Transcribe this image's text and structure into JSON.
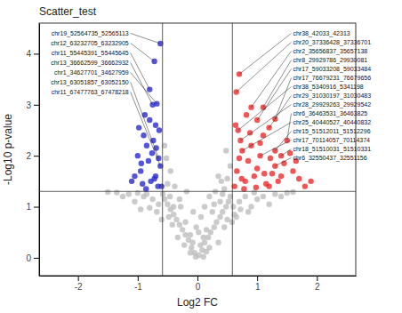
{
  "chart_data": {
    "type": "scatter",
    "title": "Scatter_test",
    "x_label": "Log2 FC",
    "y_label": "-Log10 p-value",
    "xlim": [
      -2.65,
      2.65
    ],
    "ylim": [
      -0.35,
      4.6
    ],
    "xticks": [
      -2,
      -1,
      0,
      1,
      2
    ],
    "yticks": [
      0,
      1,
      2,
      3,
      4
    ],
    "grid": false,
    "threshold_lines": {
      "x": [
        -0.585,
        0.585
      ],
      "y": [
        1.301
      ]
    },
    "series": [
      {
        "color": "#bebebe",
        "x": [
          0.02,
          -0.05,
          0.08,
          -0.1,
          0.12,
          -0.15,
          0.18,
          -0.2,
          0.22,
          -0.25,
          0.28,
          -0.3,
          0.32,
          -0.35,
          0.38,
          -0.4,
          0.42,
          -0.45,
          0.48,
          -0.5,
          0.52,
          -0.55,
          0.55,
          -0.58,
          0.45,
          -0.5,
          0.5,
          -0.45,
          0.55,
          -0.52,
          0.4,
          -0.38,
          0.35,
          0.48,
          -0.55,
          0.3,
          -0.3,
          0.25,
          -0.2,
          0.15,
          -0.08,
          0.05,
          -0.12,
          0.1,
          0.6,
          -0.65,
          0.7,
          -0.75,
          0.8,
          -0.85,
          0.9,
          -0.95,
          1.0,
          -1.05,
          1.1,
          -1.15,
          1.2,
          -1.25,
          1.3,
          -1.35,
          1.4,
          1.5,
          0.62,
          -0.68,
          0.72,
          -0.8,
          0.85,
          -0.9,
          0.95,
          -1.0,
          0.58,
          -0.6,
          0.65,
          1.6,
          -1.5,
          0.02,
          -0.02,
          0.06,
          -0.07,
          0.12,
          0.2,
          -0.18,
          0.1,
          -0.03,
          0.35,
          -0.33,
          0.45,
          -0.42,
          0.5,
          -0.48,
          0.2,
          -0.22,
          0.15,
          -0.12,
          0.38,
          -0.4,
          0.28,
          -0.28,
          0.42,
          -0.46
        ],
        "values": [
          0.05,
          0.1,
          0.15,
          0.2,
          0.3,
          0.35,
          0.4,
          0.45,
          0.5,
          0.55,
          0.6,
          0.65,
          0.7,
          0.75,
          0.8,
          0.85,
          0.9,
          0.95,
          1.0,
          1.05,
          1.1,
          1.15,
          1.2,
          1.25,
          1.35,
          1.45,
          1.55,
          1.7,
          1.8,
          1.95,
          1.5,
          1.4,
          1.6,
          2.1,
          2.2,
          1.3,
          1.15,
          0.9,
          0.7,
          0.55,
          0.3,
          0.25,
          0.45,
          0.4,
          1.0,
          1.05,
          1.1,
          1.15,
          1.2,
          1.25,
          1.0,
          0.95,
          1.15,
          1.1,
          1.2,
          1.25,
          1.05,
          1.2,
          1.25,
          1.28,
          1.2,
          1.27,
          0.85,
          0.9,
          0.95,
          0.98,
          0.9,
          1.2,
          1.28,
          1.27,
          0.7,
          0.75,
          0.8,
          1.29,
          1.29,
          0.5,
          0.6,
          0.8,
          0.9,
          1.0,
          1.2,
          1.3,
          0.02,
          0.02,
          0.3,
          0.4,
          0.6,
          0.65,
          0.75,
          0.8,
          0.2,
          0.25,
          0.12,
          0.1,
          1.1,
          1.0,
          1.05,
          1.0,
          1.25,
          1.2
        ]
      },
      {
        "color": "#2b2bd0",
        "x": [
          -0.62,
          -0.72,
          -0.8,
          -0.75,
          -0.68,
          -0.65,
          -0.62,
          -0.7,
          -0.9,
          -0.85,
          -1.0,
          -0.95,
          -0.78,
          -0.66,
          -0.88,
          -1.05,
          -0.74,
          -0.82,
          -0.92,
          -0.7,
          -0.64,
          -0.98,
          -0.86,
          -0.76,
          -1.1,
          -0.69,
          -0.8,
          -0.94,
          -0.6,
          -0.72
        ],
        "values": [
          4.2,
          3.85,
          3.3,
          3.0,
          3.02,
          1.95,
          1.8,
          2.6,
          2.4,
          2.2,
          2.0,
          1.7,
          1.5,
          1.4,
          2.8,
          1.6,
          2.3,
          1.9,
          1.45,
          1.6,
          2.5,
          2.55,
          1.35,
          2.05,
          1.5,
          2.15,
          2.7,
          1.85,
          1.4,
          1.55
        ]
      },
      {
        "color": "#ee2a2a",
        "x": [
          0.7,
          0.65,
          0.9,
          1.1,
          1.0,
          1.3,
          0.68,
          1.2,
          0.72,
          1.5,
          0.75,
          1.3,
          1.05,
          1.4,
          1.3,
          0.8,
          0.95,
          1.15,
          1.6,
          1.7,
          0.62,
          0.85,
          1.25,
          1.45,
          1.8,
          0.66,
          0.9,
          1.1,
          1.35,
          1.55,
          0.7,
          0.78,
          1.0,
          1.2,
          1.65,
          0.64,
          0.88,
          1.05,
          1.4,
          1.9,
          0.74,
          0.98,
          1.22,
          0.82,
          1.12
        ],
        "values": [
          3.6,
          3.25,
          2.95,
          2.95,
          2.7,
          2.72,
          2.5,
          2.55,
          2.3,
          2.3,
          2.1,
          2.1,
          2.0,
          2.0,
          1.8,
          1.5,
          1.6,
          1.45,
          1.7,
          1.55,
          1.4,
          1.9,
          1.65,
          1.85,
          1.4,
          1.7,
          2.2,
          2.4,
          1.5,
          2.05,
          1.95,
          1.35,
          1.75,
          1.4,
          1.9,
          2.6,
          2.45,
          2.25,
          1.6,
          1.5,
          1.55,
          1.38,
          1.95,
          2.8,
          1.65
        ]
      }
    ],
    "annotations": [
      {
        "text": "chr19_52564735_52565113",
        "x": -0.62,
        "y": 4.2
      },
      {
        "text": "chr12_63232705_63232905",
        "x": -0.72,
        "y": 3.85
      },
      {
        "text": "chr11_55445391_55445645",
        "x": -0.8,
        "y": 3.3
      },
      {
        "text": "chr13_36662599_36662932",
        "x": -0.75,
        "y": 3.0
      },
      {
        "text": "chr1_34627701_34627959",
        "x": -0.68,
        "y": 3.02
      },
      {
        "text": "chr13_63051857_63052150",
        "x": -0.65,
        "y": 1.95
      },
      {
        "text": "chr11_67477763_67478218",
        "x": -0.62,
        "y": 1.8
      },
      {
        "text": "chr38_42033_42313",
        "x": 0.7,
        "y": 3.6
      },
      {
        "text": "chr20_37336428_37336701",
        "x": 0.65,
        "y": 3.25
      },
      {
        "text": "chr2_35656837_35657138",
        "x": 0.9,
        "y": 2.95
      },
      {
        "text": "chr8_29929786_29930081",
        "x": 1.1,
        "y": 2.95
      },
      {
        "text": "chr17_59033208_59033484",
        "x": 1.0,
        "y": 2.7
      },
      {
        "text": "chr17_76679231_76679656",
        "x": 1.3,
        "y": 2.72
      },
      {
        "text": "chr38_5340916_5341198",
        "x": 0.68,
        "y": 2.5
      },
      {
        "text": "chr29_31030197_31030483",
        "x": 1.2,
        "y": 2.55
      },
      {
        "text": "chr28_29929263_29929542",
        "x": 0.72,
        "y": 2.3
      },
      {
        "text": "chr6_36463531_36463825",
        "x": 1.5,
        "y": 2.3
      },
      {
        "text": "chr25_40440527_40440832",
        "x": 0.75,
        "y": 2.1
      },
      {
        "text": "chr15_51512011_51512296",
        "x": 1.3,
        "y": 2.1
      },
      {
        "text": "chr17_70114057_70114374",
        "x": 1.05,
        "y": 2.0
      },
      {
        "text": "chr18_51510031_51510331",
        "x": 1.4,
        "y": 2.0
      },
      {
        "text": "chr6_32550437_32551156",
        "x": 1.3,
        "y": 1.8
      }
    ]
  }
}
